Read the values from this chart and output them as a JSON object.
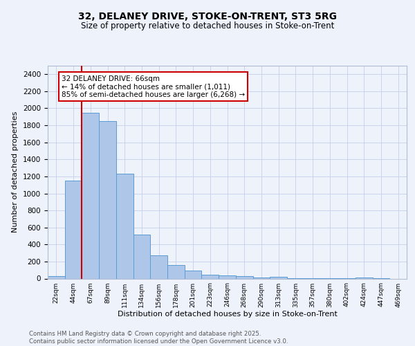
{
  "title1": "32, DELANEY DRIVE, STOKE-ON-TRENT, ST3 5RG",
  "title2": "Size of property relative to detached houses in Stoke-on-Trent",
  "xlabel": "Distribution of detached houses by size in Stoke-on-Trent",
  "ylabel": "Number of detached properties",
  "bins": [
    "22sqm",
    "44sqm",
    "67sqm",
    "89sqm",
    "111sqm",
    "134sqm",
    "156sqm",
    "178sqm",
    "201sqm",
    "223sqm",
    "246sqm",
    "268sqm",
    "290sqm",
    "313sqm",
    "335sqm",
    "357sqm",
    "380sqm",
    "402sqm",
    "424sqm",
    "447sqm",
    "469sqm"
  ],
  "values": [
    25,
    1150,
    1950,
    1850,
    1230,
    520,
    270,
    155,
    90,
    48,
    38,
    32,
    10,
    18,
    5,
    8,
    3,
    2,
    15,
    2,
    0
  ],
  "bar_color": "#aec6e8",
  "bar_edge_color": "#5b9bd5",
  "vline_color": "#cc0000",
  "annotation_text": "32 DELANEY DRIVE: 66sqm\n← 14% of detached houses are smaller (1,011)\n85% of semi-detached houses are larger (6,268) →",
  "annotation_box_color": "#ffffff",
  "annotation_box_edge": "#cc0000",
  "ylim": [
    0,
    2500
  ],
  "yticks": [
    0,
    200,
    400,
    600,
    800,
    1000,
    1200,
    1400,
    1600,
    1800,
    2000,
    2200,
    2400
  ],
  "footer": "Contains HM Land Registry data © Crown copyright and database right 2025.\nContains public sector information licensed under the Open Government Licence v3.0.",
  "background_color": "#eef2fb",
  "grid_color": "#c5cfe8"
}
